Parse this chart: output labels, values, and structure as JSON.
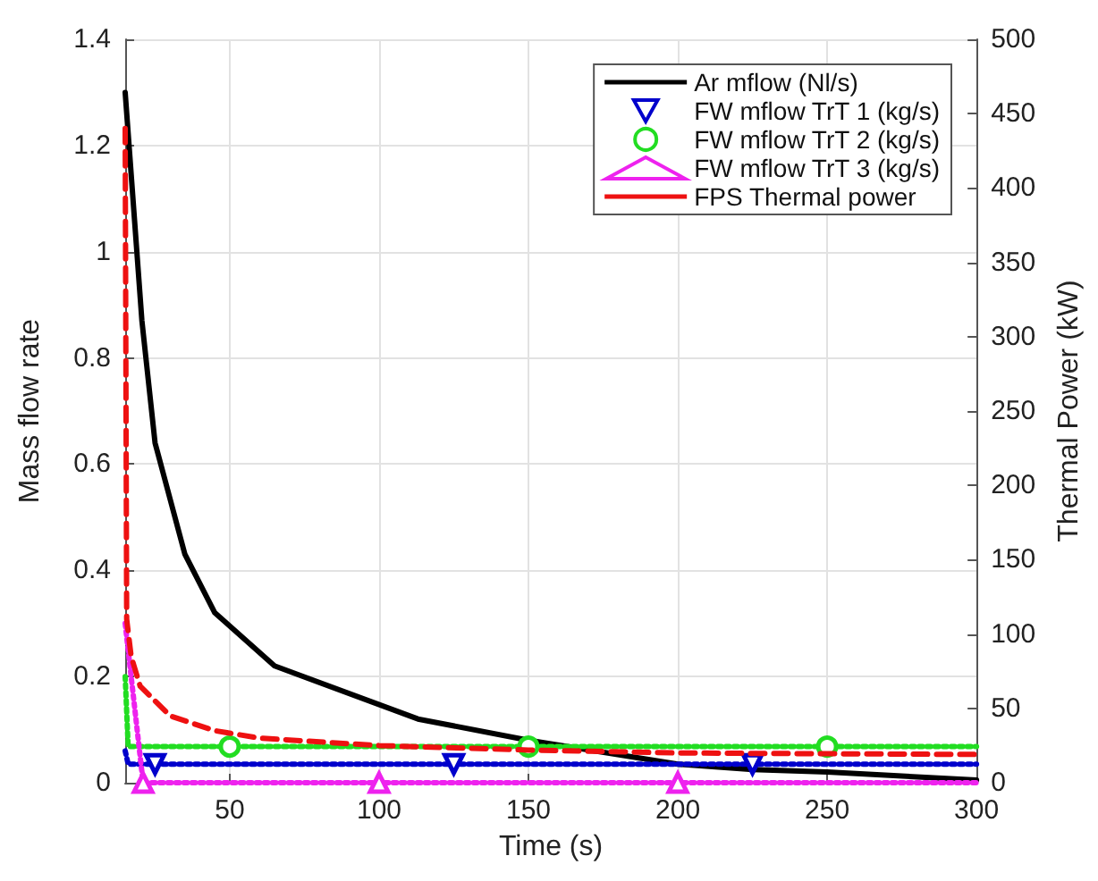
{
  "chart_data": {
    "type": "line",
    "xlabel": "Time (s)",
    "ylabel": "Mass flow rate",
    "y2label": "Thermal Power (kW)",
    "xlim": [
      15,
      300
    ],
    "xticks": [
      50,
      100,
      150,
      200,
      250,
      300
    ],
    "ylim": [
      0,
      1.4
    ],
    "yticks": [
      0,
      0.2,
      0.4,
      0.6,
      0.8,
      1,
      1.2,
      1.4
    ],
    "y2lim": [
      0,
      500
    ],
    "y2ticks": [
      0,
      50,
      100,
      150,
      200,
      250,
      300,
      350,
      400,
      450,
      500
    ],
    "grid": true,
    "legend": "top right",
    "series": [
      {
        "name": "Ar mflow (Nl/s)",
        "color": "#000000",
        "marker": "none",
        "line_style": "solid",
        "x": [
          15,
          20.6,
          25,
          35,
          45,
          65,
          113,
          150,
          200,
          225,
          250,
          300
        ],
        "values": [
          1.3,
          0.87,
          0.64,
          0.43,
          0.32,
          0.22,
          0.12,
          0.08,
          0.035,
          0.025,
          0.02,
          0.005
        ]
      },
      {
        "name": "FW mflow TrT 1 (kg/s)",
        "color": "#0000cc",
        "marker": "triangle-down",
        "line_style": "dotted",
        "x": [
          15,
          16,
          25,
          125,
          225,
          300
        ],
        "values": [
          0.06,
          0.035,
          0.035,
          0.035,
          0.035,
          0.035
        ]
      },
      {
        "name": "FW mflow TrT 2 (kg/s)",
        "color": "#22dd22",
        "marker": "circle",
        "line_style": "dotted",
        "x": [
          15,
          16,
          50,
          150,
          250,
          300
        ],
        "values": [
          0.2,
          0.068,
          0.068,
          0.068,
          0.068,
          0.068
        ]
      },
      {
        "name": "FW mflow TrT 3 (kg/s)",
        "color": "#ee22ee",
        "marker": "triangle",
        "line_style": "dotted",
        "x": [
          15,
          21,
          100,
          200,
          300
        ],
        "values": [
          0.3,
          0,
          0,
          0,
          0
        ]
      },
      {
        "name": "FPS Thermal power",
        "color": "#ee1111",
        "marker": "none",
        "line_style": "dashed",
        "axis": "y2",
        "x": [
          15,
          15.5,
          17,
          20,
          30,
          45,
          60,
          100,
          150,
          200,
          300
        ],
        "values": [
          440,
          110,
          85,
          65,
          45,
          35,
          30,
          25,
          22,
          20,
          19
        ]
      }
    ]
  }
}
